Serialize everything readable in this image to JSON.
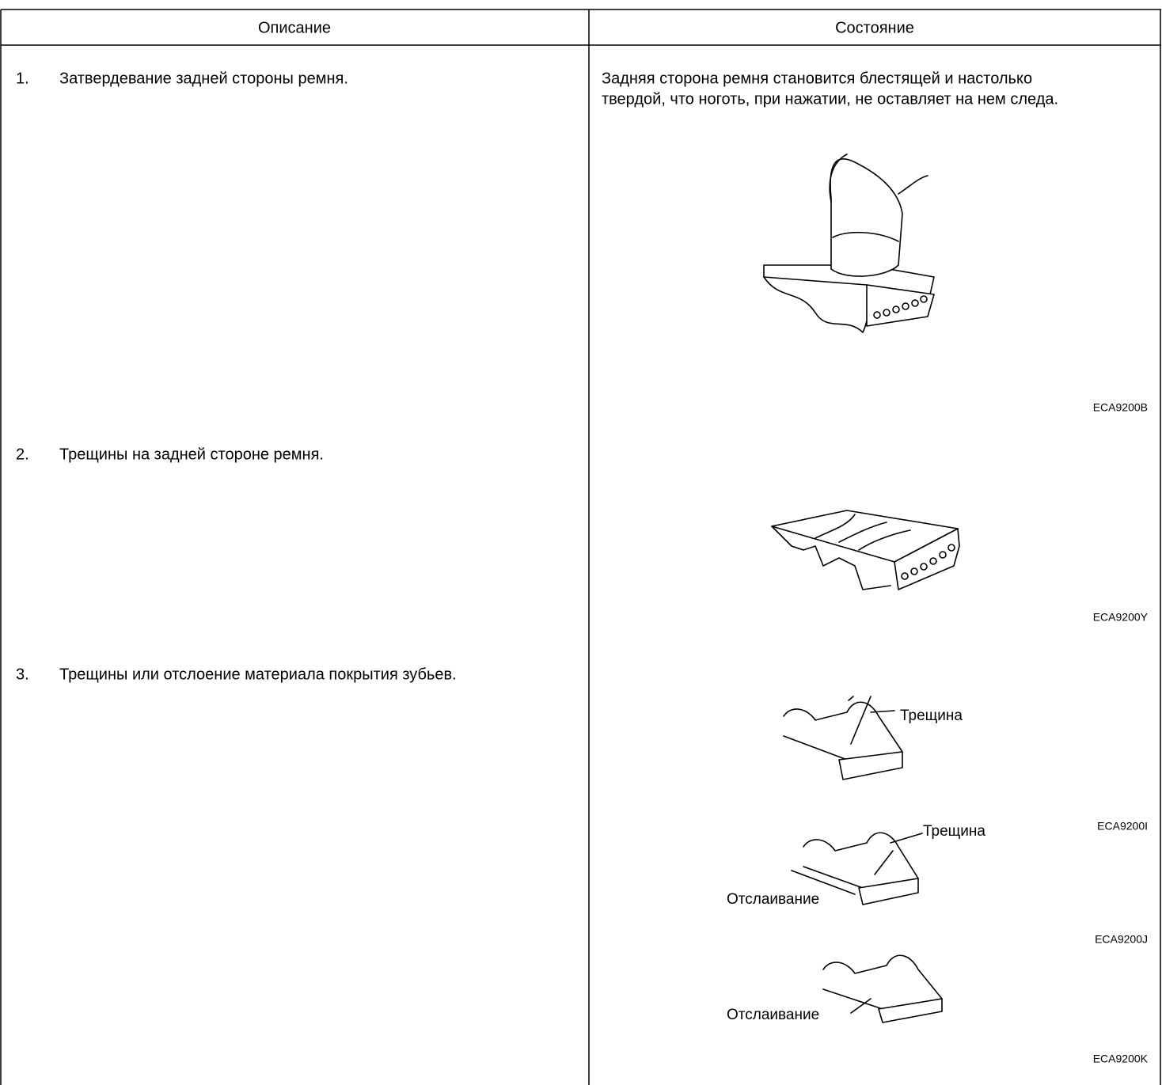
{
  "table": {
    "headers": [
      "Описание",
      "Состояние"
    ],
    "rows": [
      {
        "number": "1.",
        "description": "Затвердевание задней стороны ремня.",
        "state": [
          "Задняя сторона ремня становится блестящей и настолько",
          "твердой, что ноготь, при нажатии, не оставляет на нем следа."
        ],
        "figures": [
          {
            "code": "ECA9200B"
          }
        ]
      },
      {
        "number": "2.",
        "description": "Трещины на задней стороне ремня.",
        "figures": [
          {
            "code": "ECA9200Y"
          }
        ]
      },
      {
        "number": "3.",
        "description": "Трещины или отслоение материала покрытия зубьев.",
        "figures": [
          {
            "code": "ECA9200I",
            "labels": [
              "Трещина"
            ]
          },
          {
            "code": "ECA9200J",
            "labels": [
              "Трещина",
              "Отслаивание"
            ]
          },
          {
            "code": "ECA9200K",
            "labels": [
              "Отслаивание"
            ]
          }
        ]
      }
    ]
  }
}
